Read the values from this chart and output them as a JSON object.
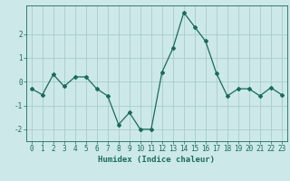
{
  "x": [
    0,
    1,
    2,
    3,
    4,
    5,
    6,
    7,
    8,
    9,
    10,
    11,
    12,
    13,
    14,
    15,
    16,
    17,
    18,
    19,
    20,
    21,
    22,
    23
  ],
  "y": [
    -0.3,
    -0.55,
    0.3,
    -0.2,
    0.2,
    0.2,
    -0.3,
    -0.6,
    -1.8,
    -1.3,
    -2.0,
    -2.0,
    0.4,
    1.4,
    2.9,
    2.3,
    1.7,
    0.35,
    -0.6,
    -0.3,
    -0.3,
    -0.6,
    -0.25,
    -0.55
  ],
  "line_color": "#1a6b5a",
  "marker": "D",
  "marker_size": 2,
  "bg_color": "#cce8e8",
  "grid_color": "#aacccc",
  "xlabel": "Humidex (Indice chaleur)",
  "ylim": [
    -2.5,
    3.2
  ],
  "yticks": [
    -2,
    -1,
    0,
    1,
    2
  ],
  "xticks": [
    0,
    1,
    2,
    3,
    4,
    5,
    6,
    7,
    8,
    9,
    10,
    11,
    12,
    13,
    14,
    15,
    16,
    17,
    18,
    19,
    20,
    21,
    22,
    23
  ],
  "tick_color": "#1a6b5a",
  "label_fontsize": 6.5,
  "tick_fontsize": 5.5
}
